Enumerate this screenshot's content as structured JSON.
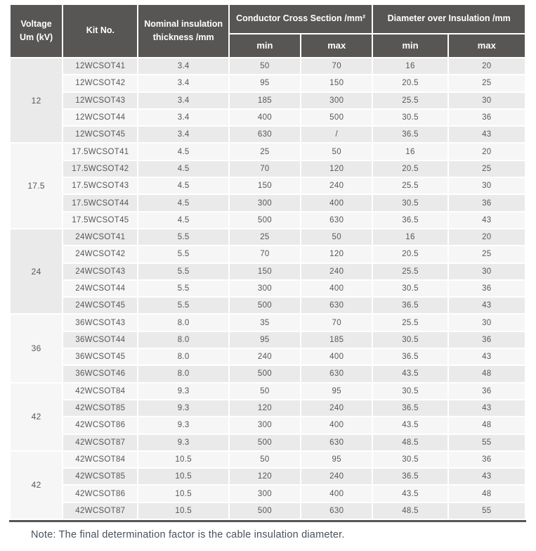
{
  "table": {
    "headers": {
      "voltage": "Voltage\nUm (kV)",
      "kit_no": "Kit No.",
      "nominal": "Nominal insulation\nthickness /mm",
      "conductor_group": "Conductor Cross Section /mm²",
      "diameter_group": "Diameter over Insulation /mm",
      "min": "min",
      "max": "max"
    },
    "column_keys": [
      "kit_no",
      "nominal_thickness",
      "ccs_min",
      "ccs_max",
      "dia_min",
      "dia_max"
    ],
    "groups": [
      {
        "voltage": "12",
        "rows": [
          [
            "12WCSOT41",
            "3.4",
            "50",
            "70",
            "16",
            "20"
          ],
          [
            "12WCSOT42",
            "3.4",
            "95",
            "150",
            "20.5",
            "25"
          ],
          [
            "12WCSOT43",
            "3.4",
            "185",
            "300",
            "25.5",
            "30"
          ],
          [
            "12WCSOT44",
            "3.4",
            "400",
            "500",
            "30.5",
            "36"
          ],
          [
            "12WCSOT45",
            "3.4",
            "630",
            "/",
            "36.5",
            "43"
          ]
        ]
      },
      {
        "voltage": "17.5",
        "rows": [
          [
            "17.5WCSOT41",
            "4.5",
            "25",
            "50",
            "16",
            "20"
          ],
          [
            "17.5WCSOT42",
            "4.5",
            "70",
            "120",
            "20.5",
            "25"
          ],
          [
            "17.5WCSOT43",
            "4.5",
            "150",
            "240",
            "25.5",
            "30"
          ],
          [
            "17.5WCSOT44",
            "4.5",
            "300",
            "400",
            "30.5",
            "36"
          ],
          [
            "17.5WCSOT45",
            "4.5",
            "500",
            "630",
            "36.5",
            "43"
          ]
        ]
      },
      {
        "voltage": "24",
        "rows": [
          [
            "24WCSOT41",
            "5.5",
            "25",
            "50",
            "16",
            "20"
          ],
          [
            "24WCSOT42",
            "5.5",
            "70",
            "120",
            "20.5",
            "25"
          ],
          [
            "24WCSOT43",
            "5.5",
            "150",
            "240",
            "25.5",
            "30"
          ],
          [
            "24WCSOT44",
            "5.5",
            "300",
            "400",
            "30.5",
            "36"
          ],
          [
            "24WCSOT45",
            "5.5",
            "500",
            "630",
            "36.5",
            "43"
          ]
        ]
      },
      {
        "voltage": "36",
        "rows": [
          [
            "36WCSOT43",
            "8.0",
            "35",
            "70",
            "25.5",
            "30"
          ],
          [
            "36WCSOT44",
            "8.0",
            "95",
            "185",
            "30.5",
            "36"
          ],
          [
            "36WCSOT45",
            "8.0",
            "240",
            "400",
            "36.5",
            "43"
          ],
          [
            "36WCSOT46",
            "8.0",
            "500",
            "630",
            "43.5",
            "48"
          ]
        ]
      },
      {
        "voltage": "42",
        "rows": [
          [
            "42WCSOT84",
            "9.3",
            "50",
            "95",
            "30.5",
            "36"
          ],
          [
            "42WCSOT85",
            "9.3",
            "120",
            "240",
            "36.5",
            "43"
          ],
          [
            "42WCSOT86",
            "9.3",
            "300",
            "400",
            "43.5",
            "48"
          ],
          [
            "42WCSOT87",
            "9.3",
            "500",
            "630",
            "48.5",
            "55"
          ]
        ]
      },
      {
        "voltage": "42",
        "rows": [
          [
            "42WCSOT84",
            "10.5",
            "50",
            "95",
            "30.5",
            "36"
          ],
          [
            "42WCSOT85",
            "10.5",
            "120",
            "240",
            "36.5",
            "43"
          ],
          [
            "42WCSOT86",
            "10.5",
            "300",
            "400",
            "43.5",
            "48"
          ],
          [
            "42WCSOT87",
            "10.5",
            "500",
            "630",
            "48.5",
            "55"
          ]
        ]
      }
    ]
  },
  "note": "Note: The final determination factor is the cable insulation diameter.",
  "colors": {
    "header_bg": "#585655",
    "header_text": "#ffffff",
    "row_odd_bg": "#eaeaea",
    "row_even_bg": "#f6f6f6",
    "voltage_col_bg": "#e9e9e9",
    "cell_text": "#595757",
    "note_text": "#49525a",
    "bottom_border": "#585655"
  }
}
